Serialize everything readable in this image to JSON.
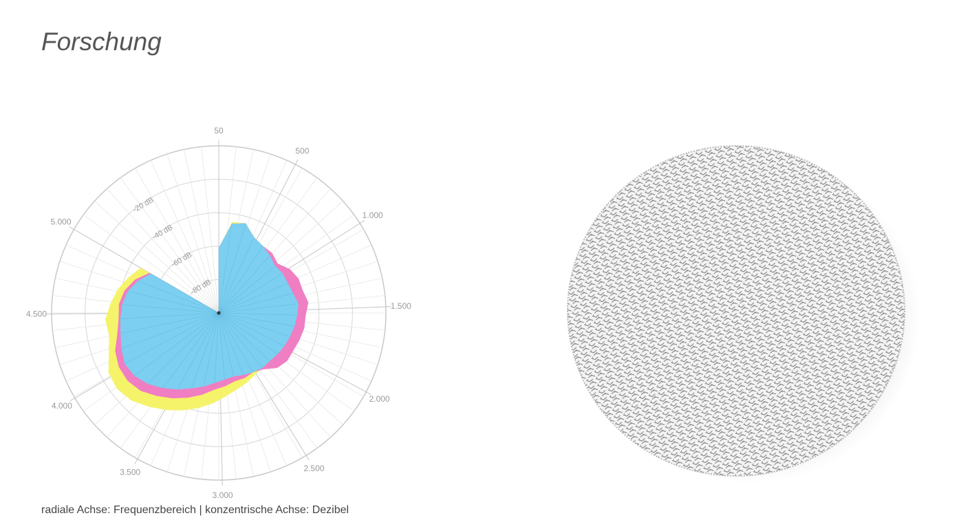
{
  "page": {
    "title": "Forschung",
    "caption": "radiale Achse: Frequenzbereich | konzentrische Achse: Dezibel"
  },
  "chart_data": {
    "type": "polar-area",
    "title": "",
    "radial_axis": {
      "tick_labels": [
        "50",
        "500",
        "1.000",
        "1.500",
        "2.000",
        "2.500",
        "3.000",
        "3.500",
        "4.000",
        "4.500",
        "5.000"
      ],
      "range": [
        50,
        5000
      ]
    },
    "concentric_axis": {
      "tick_labels": [
        "-20 dB",
        "-40 dB",
        "-60 dB",
        "-80 dB"
      ],
      "range_db": [
        -100,
        0
      ]
    },
    "grid": true,
    "start_gap_frequency": 5000,
    "series": [
      {
        "name": "",
        "color": "#f5f36a",
        "db": [
          -61,
          -45,
          -44,
          -50,
          -52,
          -52,
          -54,
          -55,
          -58,
          -60,
          -60,
          -62,
          -62,
          -62,
          -62,
          -62,
          -60,
          -58,
          -57,
          -55,
          -53,
          -50,
          -46,
          -42,
          -38,
          -34,
          -30,
          -26,
          -24,
          -25,
          -30,
          -33,
          -32,
          -35,
          -38,
          -42,
          -46
        ]
      },
      {
        "name": "",
        "color": "#f07ec2",
        "db": [
          -61,
          -46,
          -44,
          -50,
          -52,
          -52,
          -54,
          -50,
          -48,
          -48,
          -46,
          -48,
          -48,
          -49,
          -50,
          -50,
          -52,
          -57,
          -59,
          -58,
          -58,
          -56,
          -54,
          -50,
          -46,
          -42,
          -38,
          -34,
          -32,
          -32,
          -34,
          -38,
          -40,
          -40,
          -42,
          -46,
          -52
        ]
      },
      {
        "name": "",
        "color": "#7ccff0",
        "db": [
          -61,
          -46,
          -44,
          -50,
          -52,
          -54,
          -56,
          -55,
          -55,
          -54,
          -52,
          -53,
          -54,
          -55,
          -56,
          -57,
          -58,
          -58,
          -59,
          -60,
          -61,
          -60,
          -58,
          -55,
          -52,
          -48,
          -44,
          -40,
          -37,
          -36,
          -38,
          -40,
          -41,
          -42,
          -44,
          -48,
          -53
        ]
      }
    ]
  },
  "mesh": {
    "color_light": "#f4f4f4",
    "color_pattern": "#777777"
  }
}
